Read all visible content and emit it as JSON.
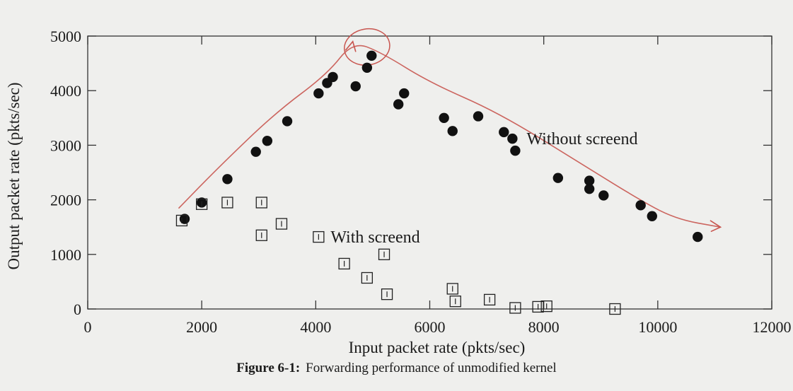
{
  "caption": {
    "label": "Figure 6-1:",
    "text": "Forwarding performance of unmodified kernel"
  },
  "chart_data": {
    "type": "scatter",
    "xlabel": "Input packet rate (pkts/sec)",
    "ylabel": "Output packet rate (pkts/sec)",
    "xlim": [
      0,
      12000
    ],
    "ylim": [
      0,
      5000
    ],
    "xticks": [
      0,
      2000,
      4000,
      6000,
      8000,
      10000,
      12000
    ],
    "yticks": [
      0,
      1000,
      2000,
      3000,
      4000,
      5000
    ],
    "xtick_labels": [
      "0",
      "2000",
      "4000",
      "6000",
      "8000",
      "10000",
      "12000"
    ],
    "ytick_labels": [
      "0",
      "1000",
      "2000",
      "3000",
      "4000",
      "5000"
    ],
    "grid": false,
    "series": [
      {
        "name": "Without screend",
        "marker": "filled-circle",
        "points": [
          [
            1700,
            1650
          ],
          [
            2000,
            1950
          ],
          [
            2450,
            2380
          ],
          [
            2950,
            2880
          ],
          [
            3150,
            3080
          ],
          [
            3500,
            3440
          ],
          [
            4050,
            3950
          ],
          [
            4200,
            4140
          ],
          [
            4300,
            4250
          ],
          [
            4700,
            4080
          ],
          [
            4900,
            4420
          ],
          [
            4980,
            4640
          ],
          [
            5450,
            3750
          ],
          [
            5550,
            3950
          ],
          [
            6250,
            3500
          ],
          [
            6400,
            3260
          ],
          [
            6850,
            3530
          ],
          [
            7300,
            3240
          ],
          [
            7450,
            3120
          ],
          [
            7500,
            2900
          ],
          [
            8250,
            2400
          ],
          [
            8800,
            2350
          ],
          [
            8800,
            2200
          ],
          [
            9050,
            2080
          ],
          [
            9700,
            1900
          ],
          [
            9900,
            1700
          ],
          [
            10700,
            1320
          ]
        ]
      },
      {
        "name": "With screend",
        "marker": "open-square",
        "points": [
          [
            1650,
            1620
          ],
          [
            2000,
            1920
          ],
          [
            2450,
            1950
          ],
          [
            3050,
            1950
          ],
          [
            3050,
            1350
          ],
          [
            3400,
            1560
          ],
          [
            4500,
            830
          ],
          [
            4900,
            570
          ],
          [
            5200,
            1000
          ],
          [
            5250,
            270
          ],
          [
            6400,
            370
          ],
          [
            6450,
            140
          ],
          [
            7050,
            170
          ],
          [
            7500,
            20
          ],
          [
            7900,
            40
          ],
          [
            8050,
            50
          ],
          [
            9250,
            0
          ]
        ]
      }
    ],
    "annotations": [
      {
        "text": "Without screend",
        "x": 7700,
        "y": 3120
      },
      {
        "text": "With screend",
        "x": 4050,
        "y": 1320
      }
    ],
    "handdrawn": {
      "color": "#c8554f",
      "arrow_path": [
        [
          1600,
          1850
        ],
        [
          2300,
          2600
        ],
        [
          3300,
          3600
        ],
        [
          4200,
          4300
        ],
        [
          4650,
          4900
        ],
        [
          5150,
          4700
        ],
        [
          6000,
          4150
        ],
        [
          7200,
          3600
        ],
        [
          8600,
          2700
        ],
        [
          9600,
          2050
        ],
        [
          10300,
          1650
        ],
        [
          11100,
          1500
        ]
      ],
      "circle_center": [
        4900,
        4800
      ],
      "circle_radius": [
        400,
        330
      ]
    }
  }
}
